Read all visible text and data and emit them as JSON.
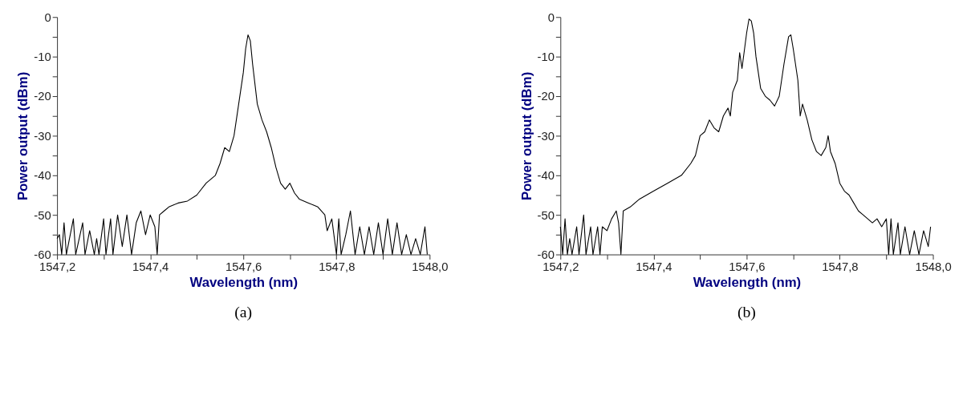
{
  "chart_data": [
    {
      "type": "line",
      "title": "(a)",
      "xlabel": "Wavelength (nm)",
      "ylabel": "Power output (dBm)",
      "grid": false,
      "legend": false,
      "marker": "none",
      "line_style": "solid",
      "xlim": [
        1547.2,
        1548.0
      ],
      "ylim": [
        -60,
        0
      ],
      "xticks": [
        {
          "value": 1547.2,
          "label": "1547,2"
        },
        {
          "value": 1547.3,
          "label": null
        },
        {
          "value": 1547.4,
          "label": "1547,4"
        },
        {
          "value": 1547.5,
          "label": null
        },
        {
          "value": 1547.6,
          "label": "1547,6"
        },
        {
          "value": 1547.7,
          "label": null
        },
        {
          "value": 1547.8,
          "label": "1547,8"
        },
        {
          "value": 1547.9,
          "label": null
        },
        {
          "value": 1548.0,
          "label": "1548,0"
        }
      ],
      "yticks": [
        -60,
        {
          "value": -55,
          "label": null
        },
        -50,
        {
          "value": -45,
          "label": null
        },
        -40,
        {
          "value": -35,
          "label": null
        },
        -30,
        {
          "value": -25,
          "label": null
        },
        -20,
        {
          "value": -15,
          "label": null
        },
        -10,
        {
          "value": -5,
          "label": null
        },
        0
      ],
      "series": [
        {
          "color": "#000000",
          "x": [
            1547.2,
            1547.205,
            1547.21,
            1547.215,
            1547.22,
            1547.235,
            1547.24,
            1547.255,
            1547.26,
            1547.27,
            1547.28,
            1547.285,
            1547.29,
            1547.3,
            1547.305,
            1547.315,
            1547.32,
            1547.33,
            1547.34,
            1547.35,
            1547.36,
            1547.37,
            1547.38,
            1547.39,
            1547.4,
            1547.41,
            1547.415,
            1547.42,
            1547.43,
            1547.44,
            1547.46,
            1547.48,
            1547.5,
            1547.52,
            1547.54,
            1547.55,
            1547.56,
            1547.57,
            1547.58,
            1547.59,
            1547.6,
            1547.605,
            1547.61,
            1547.615,
            1547.62,
            1547.63,
            1547.64,
            1547.65,
            1547.66,
            1547.67,
            1547.68,
            1547.69,
            1547.7,
            1547.71,
            1547.72,
            1547.74,
            1547.76,
            1547.775,
            1547.78,
            1547.79,
            1547.8,
            1547.805,
            1547.81,
            1547.82,
            1547.83,
            1547.84,
            1547.85,
            1547.86,
            1547.87,
            1547.88,
            1547.89,
            1547.9,
            1547.91,
            1547.92,
            1547.93,
            1547.94,
            1547.95,
            1547.96,
            1547.97,
            1547.98,
            1547.99,
            1547.995
          ],
          "values": [
            -56,
            -55,
            -60,
            -52,
            -60,
            -51,
            -60,
            -52,
            -60,
            -54,
            -60,
            -56,
            -60,
            -51,
            -60,
            -51,
            -60,
            -50,
            -58,
            -50,
            -60,
            -52,
            -49,
            -55,
            -50,
            -53,
            -60,
            -50,
            -49,
            -48,
            -47,
            -46.5,
            -45,
            -42,
            -40,
            -37,
            -33,
            -34,
            -30,
            -22,
            -14,
            -8,
            -4.5,
            -6,
            -12,
            -22,
            -26,
            -29,
            -33,
            -38,
            -42,
            -43.5,
            -42,
            -44.5,
            -46,
            -47,
            -48,
            -50,
            -54,
            -51,
            -60,
            -51,
            -60,
            -55,
            -49,
            -60,
            -53,
            -60,
            -53,
            -60,
            -52,
            -60,
            -51,
            -60,
            -52,
            -60,
            -55,
            -60,
            -56,
            -60,
            -53,
            -60
          ]
        }
      ]
    },
    {
      "type": "line",
      "title": "(b)",
      "xlabel": "Wavelength (nm)",
      "ylabel": "Power output (dBm)",
      "grid": false,
      "legend": false,
      "marker": "none",
      "line_style": "solid",
      "xlim": [
        1547.2,
        1548.0
      ],
      "ylim": [
        -60,
        0
      ],
      "xticks": [
        {
          "value": 1547.2,
          "label": "1547,2"
        },
        {
          "value": 1547.3,
          "label": null
        },
        {
          "value": 1547.4,
          "label": "1547,4"
        },
        {
          "value": 1547.5,
          "label": null
        },
        {
          "value": 1547.6,
          "label": "1547,6"
        },
        {
          "value": 1547.7,
          "label": null
        },
        {
          "value": 1547.8,
          "label": "1547,8"
        },
        {
          "value": 1547.9,
          "label": null
        },
        {
          "value": 1548.0,
          "label": "1548,0"
        }
      ],
      "yticks": [
        -60,
        {
          "value": -55,
          "label": null
        },
        -50,
        {
          "value": -45,
          "label": null
        },
        -40,
        {
          "value": -35,
          "label": null
        },
        -30,
        {
          "value": -25,
          "label": null
        },
        -20,
        {
          "value": -15,
          "label": null
        },
        -10,
        {
          "value": -5,
          "label": null
        },
        0
      ],
      "series": [
        {
          "color": "#000000",
          "x": [
            1547.2,
            1547.205,
            1547.21,
            1547.215,
            1547.22,
            1547.225,
            1547.235,
            1547.24,
            1547.25,
            1547.255,
            1547.265,
            1547.27,
            1547.28,
            1547.285,
            1547.29,
            1547.3,
            1547.31,
            1547.32,
            1547.325,
            1547.33,
            1547.335,
            1547.35,
            1547.37,
            1547.4,
            1547.43,
            1547.46,
            1547.48,
            1547.49,
            1547.5,
            1547.51,
            1547.52,
            1547.53,
            1547.54,
            1547.55,
            1547.56,
            1547.565,
            1547.57,
            1547.58,
            1547.585,
            1547.59,
            1547.6,
            1547.605,
            1547.61,
            1547.615,
            1547.62,
            1547.63,
            1547.64,
            1547.65,
            1547.66,
            1547.67,
            1547.68,
            1547.69,
            1547.695,
            1547.7,
            1547.71,
            1547.715,
            1547.72,
            1547.73,
            1547.74,
            1547.75,
            1547.76,
            1547.77,
            1547.775,
            1547.78,
            1547.79,
            1547.8,
            1547.81,
            1547.82,
            1547.83,
            1547.84,
            1547.85,
            1547.87,
            1547.88,
            1547.89,
            1547.9,
            1547.905,
            1547.91,
            1547.915,
            1547.925,
            1547.93,
            1547.94,
            1547.95,
            1547.96,
            1547.97,
            1547.98,
            1547.99,
            1547.995
          ],
          "values": [
            -53,
            -60,
            -51,
            -60,
            -56,
            -60,
            -53,
            -60,
            -50,
            -60,
            -53,
            -60,
            -53,
            -60,
            -53,
            -54,
            -51,
            -49,
            -52,
            -60,
            -49,
            -48,
            -46,
            -44,
            -42,
            -40,
            -37,
            -35,
            -30,
            -29,
            -26,
            -28,
            -29,
            -25,
            -23,
            -25,
            -19,
            -16,
            -9,
            -13,
            -4,
            -0.5,
            -1,
            -4,
            -10,
            -18,
            -20,
            -21,
            -22.5,
            -20,
            -12,
            -5,
            -4.5,
            -8,
            -16,
            -25,
            -22,
            -26,
            -31,
            -34,
            -35,
            -33,
            -30,
            -34,
            -37,
            -42,
            -44,
            -45,
            -47,
            -49,
            -50,
            -52,
            -51,
            -53,
            -51,
            -60,
            -51,
            -60,
            -52,
            -60,
            -53,
            -60,
            -54,
            -60,
            -54,
            -58,
            -53
          ]
        }
      ]
    }
  ]
}
